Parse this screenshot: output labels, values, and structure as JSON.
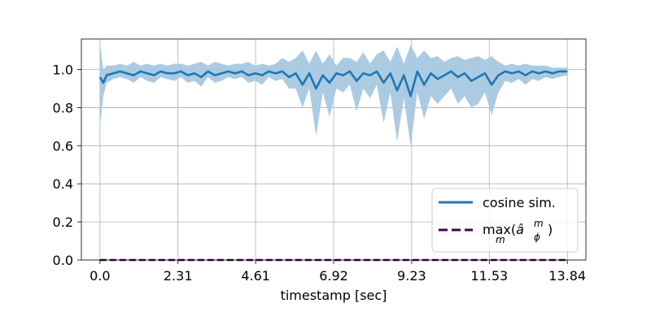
{
  "chart_data": {
    "type": "line",
    "title": "",
    "xlabel": "timestamp [sec]",
    "ylabel": "",
    "xlim": [
      -0.55,
      14.39
    ],
    "ylim": [
      0.0,
      1.16
    ],
    "grid": true,
    "legend_position": "lower-right",
    "x_ticks": [
      0.0,
      2.31,
      4.61,
      6.92,
      9.23,
      11.53,
      13.84
    ],
    "x_tick_labels": [
      "0.0",
      "2.31",
      "4.61",
      "6.92",
      "9.23",
      "11.53",
      "13.84"
    ],
    "y_ticks": [
      0.0,
      0.2,
      0.4,
      0.6,
      0.8,
      1.0
    ],
    "y_tick_labels": [
      "0.0",
      "0.2",
      "0.4",
      "0.6",
      "0.8",
      "1.0"
    ],
    "legend": [
      {
        "label": "cosine sim.",
        "style": "solid",
        "color": "#1f77b4"
      },
      {
        "label_prefix": "max(",
        "label_math": "â",
        "label_sup": "m",
        "label_sub_phi": "ϕ",
        "label_under": "m",
        "label_suffix": ")",
        "style": "dashed",
        "color": "#440154"
      }
    ],
    "series": [
      {
        "name": "cosine sim.",
        "color": "#1f77b4",
        "band_color": "#a6c8e0",
        "x": [
          0.0,
          0.1,
          0.2,
          0.4,
          0.6,
          0.8,
          1.0,
          1.2,
          1.4,
          1.6,
          1.8,
          2.0,
          2.2,
          2.4,
          2.6,
          2.8,
          3.0,
          3.2,
          3.4,
          3.6,
          3.8,
          4.0,
          4.2,
          4.4,
          4.6,
          4.8,
          5.0,
          5.2,
          5.4,
          5.6,
          5.8,
          6.0,
          6.2,
          6.4,
          6.6,
          6.8,
          7.0,
          7.2,
          7.4,
          7.6,
          7.8,
          8.0,
          8.2,
          8.4,
          8.6,
          8.8,
          9.0,
          9.2,
          9.4,
          9.6,
          9.8,
          10.0,
          10.2,
          10.4,
          10.6,
          10.8,
          11.0,
          11.2,
          11.4,
          11.6,
          11.8,
          12.0,
          12.2,
          12.4,
          12.6,
          12.8,
          13.0,
          13.2,
          13.4,
          13.6,
          13.84
        ],
        "mean": [
          0.96,
          0.93,
          0.97,
          0.98,
          0.99,
          0.98,
          0.97,
          0.99,
          0.98,
          0.97,
          0.99,
          0.98,
          0.98,
          0.99,
          0.97,
          0.98,
          0.96,
          0.99,
          0.97,
          0.98,
          0.99,
          0.98,
          0.99,
          0.97,
          0.98,
          0.97,
          0.99,
          0.98,
          0.99,
          0.96,
          0.98,
          0.92,
          0.98,
          0.9,
          0.97,
          0.93,
          0.98,
          0.97,
          0.99,
          0.94,
          0.98,
          0.97,
          0.99,
          0.93,
          0.98,
          0.89,
          0.97,
          0.86,
          0.99,
          0.92,
          0.98,
          0.95,
          0.97,
          0.99,
          0.96,
          0.98,
          0.94,
          0.96,
          0.98,
          0.92,
          0.97,
          0.99,
          0.98,
          0.99,
          0.97,
          0.99,
          0.98,
          0.99,
          0.98,
          0.99,
          0.99
        ],
        "lower": [
          0.7,
          0.86,
          0.93,
          0.95,
          0.96,
          0.95,
          0.93,
          0.96,
          0.94,
          0.93,
          0.96,
          0.95,
          0.94,
          0.96,
          0.93,
          0.94,
          0.91,
          0.96,
          0.93,
          0.94,
          0.96,
          0.95,
          0.96,
          0.93,
          0.94,
          0.92,
          0.96,
          0.94,
          0.95,
          0.9,
          0.9,
          0.8,
          0.9,
          0.65,
          0.88,
          0.75,
          0.9,
          0.88,
          0.92,
          0.78,
          0.9,
          0.85,
          0.92,
          0.72,
          0.88,
          0.62,
          0.85,
          0.6,
          0.88,
          0.74,
          0.86,
          0.82,
          0.86,
          0.9,
          0.82,
          0.86,
          0.8,
          0.82,
          0.88,
          0.76,
          0.88,
          0.94,
          0.93,
          0.95,
          0.92,
          0.95,
          0.94,
          0.96,
          0.95,
          0.96,
          0.97
        ],
        "upper": [
          1.14,
          1.0,
          1.02,
          1.02,
          1.03,
          1.02,
          1.04,
          1.02,
          1.03,
          1.02,
          1.03,
          1.02,
          1.03,
          1.03,
          1.02,
          1.03,
          1.04,
          1.02,
          1.04,
          1.03,
          1.02,
          1.03,
          1.03,
          1.04,
          1.02,
          1.03,
          1.02,
          1.03,
          1.06,
          1.04,
          1.06,
          1.1,
          1.03,
          1.1,
          1.03,
          1.08,
          1.02,
          1.06,
          1.06,
          1.04,
          1.09,
          1.03,
          1.08,
          1.1,
          1.04,
          1.12,
          1.03,
          1.13,
          1.06,
          1.1,
          1.06,
          1.07,
          1.04,
          1.06,
          1.07,
          1.05,
          1.06,
          1.07,
          1.05,
          1.07,
          1.04,
          1.02,
          1.03,
          1.02,
          1.03,
          1.02,
          1.02,
          1.02,
          1.01,
          1.01,
          1.01
        ]
      },
      {
        "name": "max",
        "color": "#440154",
        "style": "dashed",
        "x": [
          0.0,
          13.84
        ],
        "values": [
          0.0,
          0.0
        ]
      }
    ]
  }
}
